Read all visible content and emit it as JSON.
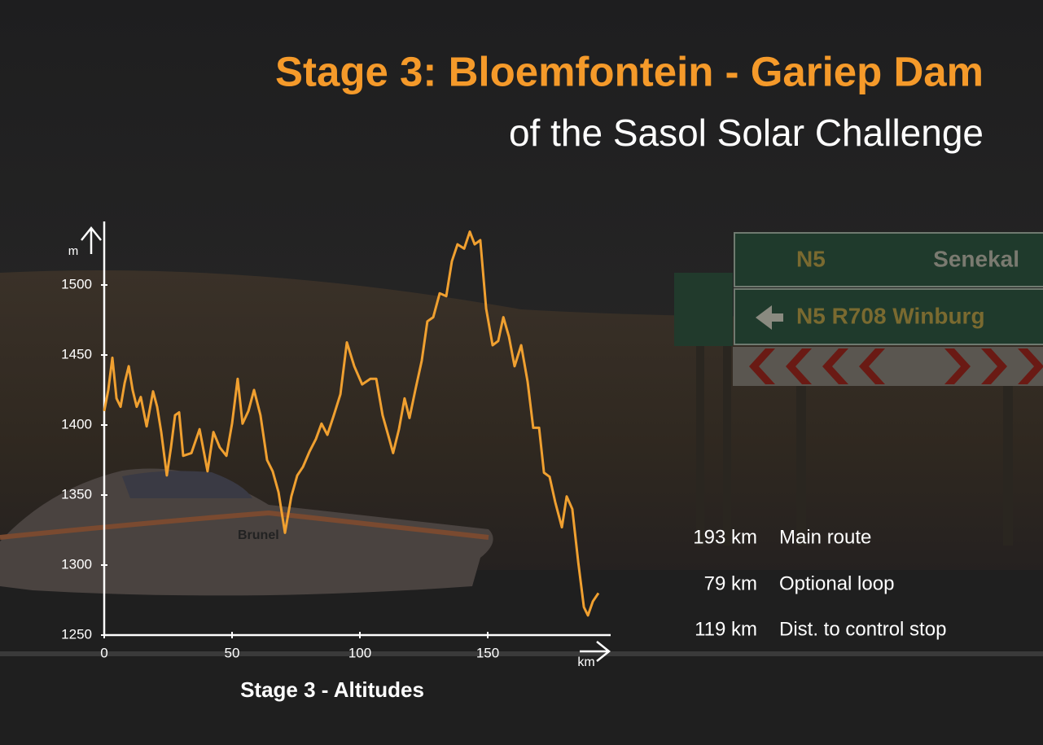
{
  "header": {
    "title": "Stage 3: Bloemfontein - Gariep Dam",
    "subtitle": "of the Sasol Solar Challenge"
  },
  "photo": {
    "sign_top": [
      "N5",
      "Senekal"
    ],
    "sign_bottom": "N5 R708 Winburg",
    "car": "Brunel"
  },
  "stats": [
    {
      "value": "193 km",
      "label": "Main route"
    },
    {
      "value": "79 km",
      "label": "Optional loop"
    },
    {
      "value": "119 km",
      "label": "Dist. to control stop"
    }
  ],
  "chart_data": {
    "type": "line",
    "title": "Stage 3 - Altitudes",
    "x_label": "km",
    "y_label": "m",
    "xlim": [
      0,
      200
    ],
    "ylim": [
      1250,
      1550
    ],
    "xticks": [
      0,
      50,
      100,
      150
    ],
    "yticks": [
      1250,
      1300,
      1350,
      1400,
      1450,
      1500
    ],
    "series": [
      {
        "name": "Altitude",
        "color": "#f0a030",
        "x": [
          0,
          1.6,
          3.2,
          4.8,
          6.4,
          8,
          9.6,
          11.1,
          12.7,
          14.3,
          16.6,
          19.1,
          20.7,
          22.3,
          24.5,
          26.1,
          27.7,
          29.3,
          30.9,
          34.1,
          37.3,
          40.4,
          42.7,
          45.2,
          47.8,
          50,
          52.2,
          54.1,
          56.4,
          58.6,
          61.1,
          63.7,
          65.9,
          68.2,
          70.7,
          73.2,
          75.5,
          77.7,
          80.3,
          82.8,
          85,
          87.3,
          89.8,
          92.4,
          94.9,
          97.8,
          100.9,
          104.1,
          106.4,
          108.9,
          111.5,
          113,
          115.3,
          117.5,
          119.4,
          121.7,
          124.2,
          126.4,
          128.7,
          131.2,
          133.8,
          136,
          138.2,
          140.8,
          143,
          144.9,
          147.1,
          149.4,
          151.9,
          154.1,
          156.1,
          158.3,
          160.5,
          163.1,
          165.6,
          167.8,
          170.1,
          172,
          174.2,
          176.4,
          179,
          180.9,
          183.1,
          185.4,
          187.6,
          189.2,
          191.1,
          193.3
        ],
        "values": [
          1410,
          1425,
          1448,
          1419,
          1413,
          1430,
          1442,
          1425,
          1413,
          1420,
          1399,
          1424,
          1413,
          1395,
          1364,
          1384,
          1407,
          1409,
          1378,
          1380,
          1397,
          1367,
          1395,
          1384,
          1378,
          1401,
          1433,
          1401,
          1410,
          1425,
          1407,
          1375,
          1367,
          1352,
          1323,
          1349,
          1364,
          1370,
          1381,
          1390,
          1401,
          1393,
          1407,
          1422,
          1459,
          1442,
          1429,
          1433,
          1433,
          1407,
          1390,
          1380,
          1397,
          1419,
          1405,
          1425,
          1446,
          1474,
          1477,
          1494,
          1492,
          1517,
          1529,
          1526,
          1538,
          1529,
          1532,
          1483,
          1457,
          1460,
          1477,
          1463,
          1442,
          1457,
          1431,
          1398,
          1398,
          1366,
          1363,
          1345,
          1327,
          1349,
          1340,
          1302,
          1270,
          1264,
          1274,
          1280
        ]
      }
    ]
  }
}
